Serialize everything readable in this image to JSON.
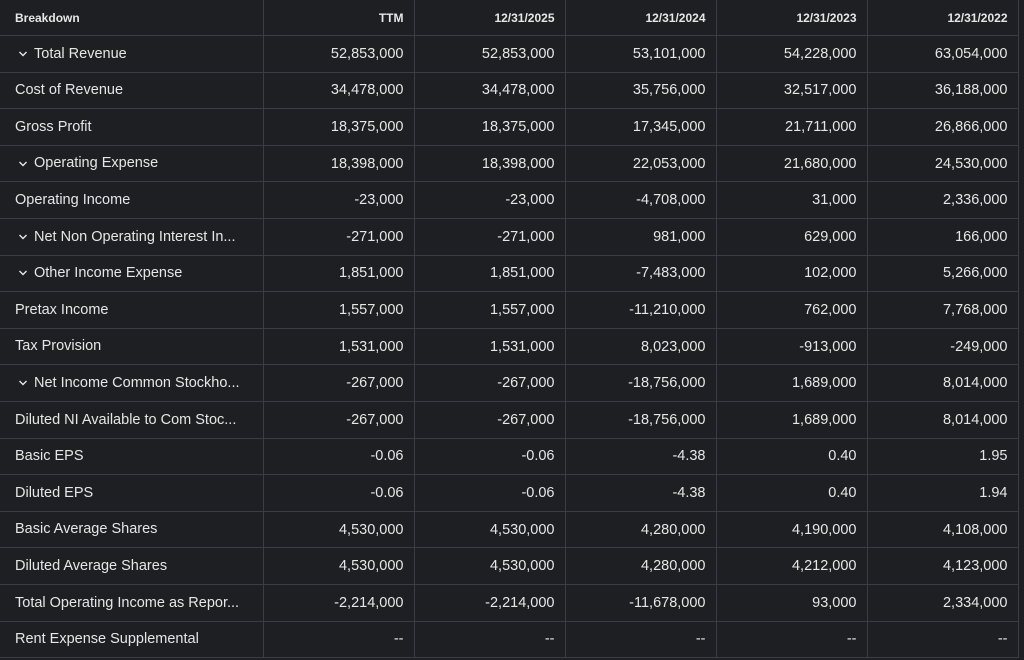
{
  "table": {
    "header": [
      "Breakdown",
      "TTM",
      "12/31/2025",
      "12/31/2024",
      "12/31/2023",
      "12/31/2022"
    ],
    "rows": [
      {
        "label": "Total Revenue",
        "expandable": true,
        "values": [
          "52,853,000",
          "52,853,000",
          "53,101,000",
          "54,228,000",
          "63,054,000"
        ]
      },
      {
        "label": "Cost of Revenue",
        "expandable": false,
        "values": [
          "34,478,000",
          "34,478,000",
          "35,756,000",
          "32,517,000",
          "36,188,000"
        ]
      },
      {
        "label": "Gross Profit",
        "expandable": false,
        "values": [
          "18,375,000",
          "18,375,000",
          "17,345,000",
          "21,711,000",
          "26,866,000"
        ]
      },
      {
        "label": "Operating Expense",
        "expandable": true,
        "values": [
          "18,398,000",
          "18,398,000",
          "22,053,000",
          "21,680,000",
          "24,530,000"
        ]
      },
      {
        "label": "Operating Income",
        "expandable": false,
        "values": [
          "-23,000",
          "-23,000",
          "-4,708,000",
          "31,000",
          "2,336,000"
        ]
      },
      {
        "label": "Net Non Operating Interest In...",
        "expandable": true,
        "values": [
          "-271,000",
          "-271,000",
          "981,000",
          "629,000",
          "166,000"
        ]
      },
      {
        "label": "Other Income Expense",
        "expandable": true,
        "values": [
          "1,851,000",
          "1,851,000",
          "-7,483,000",
          "102,000",
          "5,266,000"
        ]
      },
      {
        "label": "Pretax Income",
        "expandable": false,
        "values": [
          "1,557,000",
          "1,557,000",
          "-11,210,000",
          "762,000",
          "7,768,000"
        ]
      },
      {
        "label": "Tax Provision",
        "expandable": false,
        "values": [
          "1,531,000",
          "1,531,000",
          "8,023,000",
          "-913,000",
          "-249,000"
        ]
      },
      {
        "label": "Net Income Common Stockho...",
        "expandable": true,
        "values": [
          "-267,000",
          "-267,000",
          "-18,756,000",
          "1,689,000",
          "8,014,000"
        ]
      },
      {
        "label": "Diluted NI Available to Com Stoc...",
        "expandable": false,
        "values": [
          "-267,000",
          "-267,000",
          "-18,756,000",
          "1,689,000",
          "8,014,000"
        ]
      },
      {
        "label": "Basic EPS",
        "expandable": false,
        "values": [
          "-0.06",
          "-0.06",
          "-4.38",
          "0.40",
          "1.95"
        ]
      },
      {
        "label": "Diluted EPS",
        "expandable": false,
        "values": [
          "-0.06",
          "-0.06",
          "-4.38",
          "0.40",
          "1.94"
        ]
      },
      {
        "label": "Basic Average Shares",
        "expandable": false,
        "values": [
          "4,530,000",
          "4,530,000",
          "4,280,000",
          "4,190,000",
          "4,108,000"
        ]
      },
      {
        "label": "Diluted Average Shares",
        "expandable": false,
        "values": [
          "4,530,000",
          "4,530,000",
          "4,280,000",
          "4,212,000",
          "4,123,000"
        ]
      },
      {
        "label": "Total Operating Income as Repor...",
        "expandable": false,
        "values": [
          "-2,214,000",
          "-2,214,000",
          "-11,678,000",
          "93,000",
          "2,334,000"
        ]
      },
      {
        "label": "Rent Expense Supplemental",
        "expandable": false,
        "values": [
          "--",
          "--",
          "--",
          "--",
          "--"
        ]
      }
    ]
  }
}
